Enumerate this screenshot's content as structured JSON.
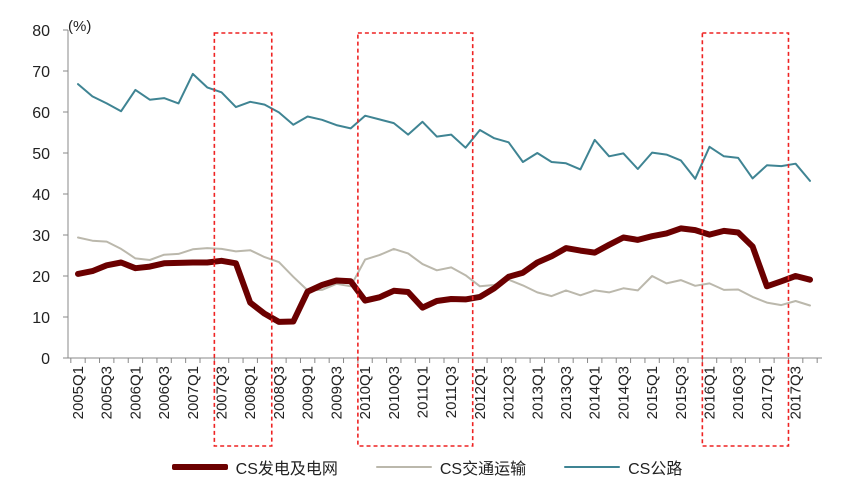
{
  "chart_data": {
    "type": "line",
    "unit_label": "(%)",
    "ylim": [
      0,
      80
    ],
    "yticks": [
      0,
      10,
      20,
      30,
      40,
      50,
      60,
      70,
      80
    ],
    "grid": false,
    "legend_position": "bottom",
    "x": [
      "2005Q1",
      "2005Q2",
      "2005Q3",
      "2005Q4",
      "2006Q1",
      "2006Q2",
      "2006Q3",
      "2006Q4",
      "2007Q1",
      "2007Q2",
      "2007Q3",
      "2007Q4",
      "2008Q1",
      "2008Q2",
      "2008Q3",
      "2008Q4",
      "2009Q1",
      "2009Q2",
      "2009Q3",
      "2009Q4",
      "2010Q1",
      "2010Q2",
      "2010Q3",
      "2010Q4",
      "2011Q1",
      "2011Q2",
      "2011Q3",
      "2011Q4",
      "2012Q1",
      "2012Q2",
      "2012Q3",
      "2012Q4",
      "2013Q1",
      "2013Q2",
      "2013Q3",
      "2013Q4",
      "2014Q1",
      "2014Q2",
      "2014Q3",
      "2014Q4",
      "2015Q1",
      "2015Q2",
      "2015Q3",
      "2015Q4",
      "2016Q1",
      "2016Q2",
      "2016Q3",
      "2016Q4",
      "2017Q1",
      "2017Q2",
      "2017Q3",
      "2017Q4"
    ],
    "tick_labels": [
      "2005Q1",
      "2005Q3",
      "2006Q1",
      "2006Q3",
      "2007Q1",
      "2007Q3",
      "2008Q1",
      "2008Q3",
      "2009Q1",
      "2009Q3",
      "2010Q1",
      "2010Q3",
      "2011Q1",
      "2011Q3",
      "2012Q1",
      "2012Q3",
      "2013Q1",
      "2013Q3",
      "2014Q1",
      "2014Q3",
      "2015Q1",
      "2015Q3",
      "2016Q1",
      "2016Q3",
      "2017Q1",
      "2017Q3"
    ],
    "series": [
      {
        "name": "CS发电及电网",
        "color": "#6b0000",
        "values": [
          20.5,
          21.2,
          22.6,
          23.3,
          21.9,
          22.3,
          23.1,
          23.2,
          23.3,
          23.3,
          23.7,
          23.1,
          13.5,
          10.8,
          8.8,
          8.9,
          16.2,
          17.8,
          18.9,
          18.7,
          14.0,
          14.8,
          16.4,
          16.1,
          12.3,
          13.9,
          14.4,
          14.3,
          14.9,
          17.0,
          19.8,
          20.8,
          23.3,
          24.8,
          26.8,
          26.2,
          25.7,
          27.6,
          29.4,
          28.8,
          29.7,
          30.4,
          31.6,
          31.2,
          30.1,
          31.0,
          30.6,
          27.2,
          17.5,
          18.7,
          20.0,
          19.1
        ]
      },
      {
        "name": "CS交通运输",
        "color": "#bbb8ac",
        "values": [
          29.4,
          28.6,
          28.4,
          26.6,
          24.3,
          23.9,
          25.2,
          25.4,
          26.5,
          26.8,
          26.6,
          26.0,
          26.3,
          24.6,
          23.4,
          19.8,
          16.5,
          16.6,
          18.1,
          17.5,
          24.0,
          25.1,
          26.6,
          25.5,
          22.9,
          21.4,
          22.1,
          20.2,
          17.5,
          17.8,
          19.1,
          17.7,
          16.0,
          15.1,
          16.5,
          15.3,
          16.5,
          16.0,
          17.0,
          16.5,
          20.0,
          18.2,
          19.0,
          17.6,
          18.2,
          16.6,
          16.7,
          14.9,
          13.5,
          12.9,
          13.9,
          12.8
        ]
      },
      {
        "name": "CS公路",
        "color": "#3f8493",
        "values": [
          66.8,
          63.8,
          62.1,
          60.2,
          65.4,
          63.0,
          63.4,
          62.1,
          69.3,
          66.0,
          64.8,
          61.2,
          62.5,
          61.8,
          59.9,
          56.9,
          58.9,
          58.1,
          56.8,
          56.0,
          59.1,
          58.2,
          57.3,
          54.5,
          57.6,
          54.0,
          54.5,
          51.3,
          55.6,
          53.6,
          52.6,
          47.8,
          50.0,
          47.8,
          47.5,
          46.0,
          53.2,
          49.2,
          49.9,
          46.1,
          50.1,
          49.6,
          48.2,
          43.7,
          51.5,
          49.2,
          48.8,
          43.8,
          47.0,
          46.8,
          47.4,
          43.2
        ]
      }
    ],
    "highlight_boxes": [
      {
        "from": "2007Q3",
        "to": "2008Q2"
      },
      {
        "from": "2010Q1",
        "to": "2011Q4"
      },
      {
        "from": "2016Q1",
        "to": "2017Q2"
      }
    ],
    "box_color": "#ee2222"
  }
}
